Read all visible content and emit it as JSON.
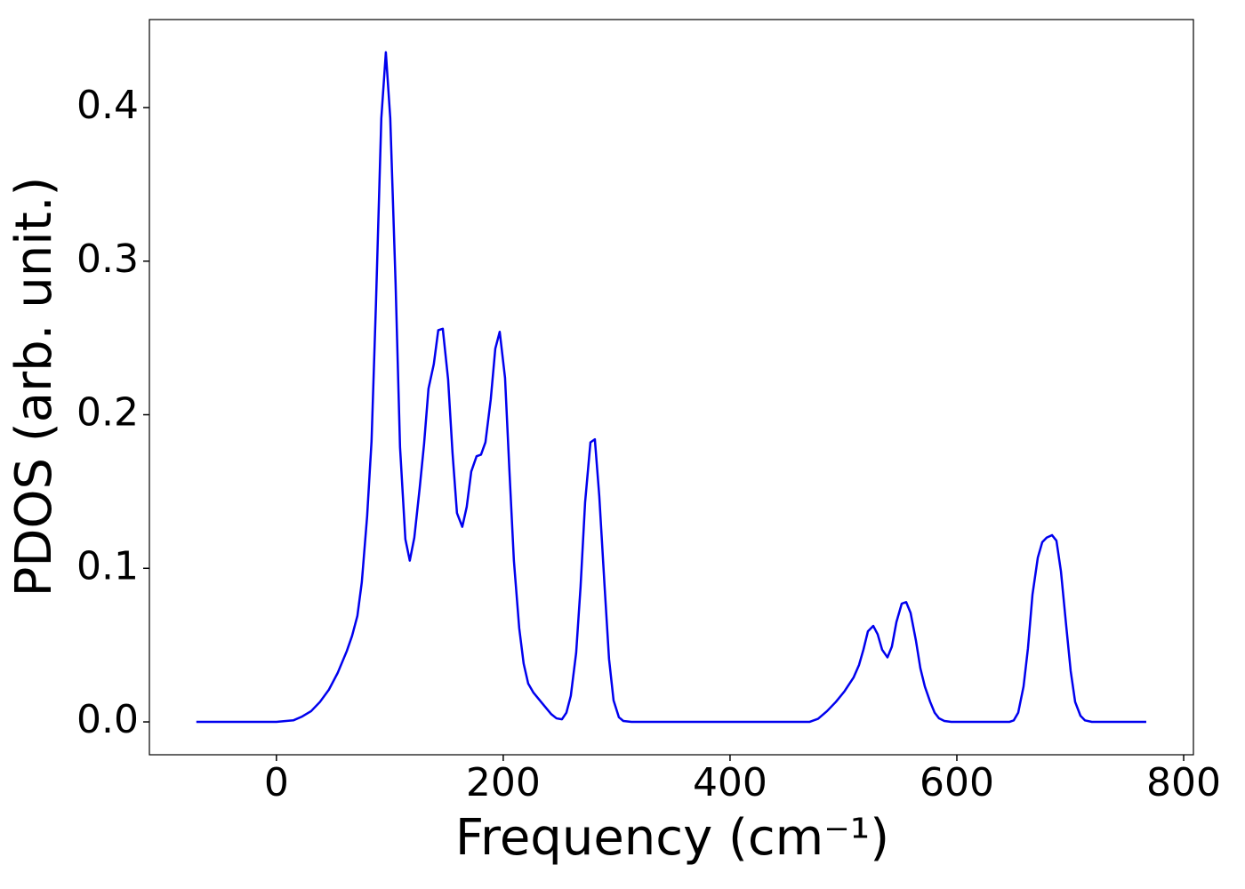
{
  "chart_data": {
    "type": "line",
    "xlabel": "Frequency (cm⁻¹)",
    "ylabel": "PDOS (arb. unit.)",
    "color": "#0000ee",
    "xlim": [
      -112,
      808.6
    ],
    "ylim": [
      -0.0214,
      0.4573
    ],
    "xticks": [
      0,
      200,
      400,
      600,
      800
    ],
    "yticks": [
      {
        "value": 0,
        "label": "0.0"
      },
      0.1,
      0.2,
      0.3,
      0.4
    ],
    "x": [
      -70.6,
      0,
      14.9,
      22.7,
      30.6,
      38.4,
      46.3,
      54.1,
      62,
      66.7,
      71.4,
      75.3,
      80,
      83.9,
      87.8,
      92.5,
      96.5,
      100.4,
      105.1,
      109,
      113.7,
      117.6,
      121.6,
      126.3,
      130.2,
      134.1,
      138.8,
      142.7,
      146.7,
      151.4,
      155.3,
      159.2,
      163.9,
      167.8,
      171.8,
      176.5,
      180.4,
      184.3,
      189,
      193,
      196.9,
      201.6,
      205.5,
      209.4,
      214.1,
      218,
      222,
      226.7,
      234.5,
      242.4,
      247,
      251.8,
      255.7,
      259.6,
      264.3,
      268.2,
      272.2,
      276.9,
      280.8,
      284.7,
      289.4,
      293.3,
      297.3,
      302,
      305.9,
      313,
      470,
      477.6,
      485.5,
      493.3,
      501,
      509,
      513.7,
      517.6,
      521.6,
      526.3,
      530.2,
      534.1,
      538.8,
      542.7,
      546.7,
      551.4,
      555.3,
      559.2,
      563.9,
      567.8,
      571.8,
      576.5,
      580.4,
      584.3,
      589,
      595,
      646.3,
      650.2,
      654.1,
      658.8,
      662.7,
      666.7,
      671.4,
      675.3,
      679.2,
      683.9,
      687.8,
      691.8,
      696.5,
      700.4,
      704.3,
      709,
      712.9,
      719,
      767
    ],
    "values": [
      0,
      0,
      0.001,
      0.0035,
      0.007,
      0.013,
      0.021,
      0.032,
      0.046,
      0.056,
      0.069,
      0.091,
      0.134,
      0.183,
      0.273,
      0.393,
      0.436,
      0.393,
      0.285,
      0.179,
      0.119,
      0.105,
      0.12,
      0.152,
      0.181,
      0.217,
      0.233,
      0.255,
      0.256,
      0.223,
      0.175,
      0.136,
      0.127,
      0.14,
      0.163,
      0.173,
      0.174,
      0.182,
      0.21,
      0.243,
      0.254,
      0.224,
      0.163,
      0.105,
      0.061,
      0.038,
      0.025,
      0.019,
      0.012,
      0.005,
      0.0023,
      0.0017,
      0.006,
      0.017,
      0.045,
      0.088,
      0.143,
      0.182,
      0.184,
      0.147,
      0.088,
      0.041,
      0.014,
      0.003,
      0.0006,
      0,
      0,
      0.002,
      0.007,
      0.013,
      0.02,
      0.029,
      0.037,
      0.047,
      0.059,
      0.0625,
      0.057,
      0.047,
      0.042,
      0.049,
      0.065,
      0.077,
      0.078,
      0.071,
      0.053,
      0.035,
      0.023,
      0.013,
      0.006,
      0.0023,
      0.0006,
      0,
      0,
      0.001,
      0.006,
      0.023,
      0.048,
      0.083,
      0.107,
      0.117,
      0.12,
      0.1216,
      0.118,
      0.098,
      0.062,
      0.033,
      0.013,
      0.004,
      0.001,
      0,
      0
    ]
  }
}
